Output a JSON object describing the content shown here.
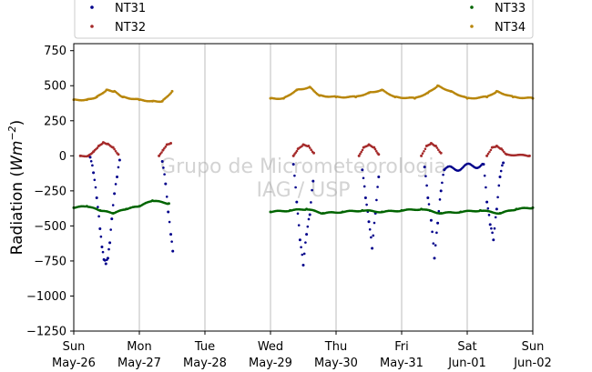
{
  "chart_data": {
    "type": "scatter",
    "title": "",
    "xlabel": "",
    "ylabel": "Radiation (Wm⁻²)",
    "ylabel_parts": {
      "prefix": "Radiation (",
      "unit": "Wm",
      "exp": "−2",
      "suffix": ")"
    },
    "ylim": [
      -1250,
      800
    ],
    "xlim": [
      0,
      7
    ],
    "yticks": [
      750,
      500,
      250,
      0,
      -250,
      -500,
      -750,
      -1000,
      -1250
    ],
    "ytick_labels": [
      "750",
      "500",
      "250",
      "0",
      "−250",
      "−500",
      "−750",
      "−1000",
      "−1250"
    ],
    "xticks": [
      {
        "x": 0,
        "day": "Sun",
        "date": "May-26"
      },
      {
        "x": 1,
        "day": "Mon",
        "date": "May-27"
      },
      {
        "x": 2,
        "day": "Tue",
        "date": "May-28"
      },
      {
        "x": 3,
        "day": "Wed",
        "date": "May-29"
      },
      {
        "x": 4,
        "day": "Thu",
        "date": "May-30"
      },
      {
        "x": 5,
        "day": "Fri",
        "date": "May-31"
      },
      {
        "x": 6,
        "day": "Sat",
        "date": "Jun-01"
      },
      {
        "x": 7,
        "day": "Sun",
        "date": "Jun-02"
      }
    ],
    "grid": "vertical",
    "legend_placement": "top",
    "watermark": [
      "Grupo de Micrometeorologia",
      "IAG / USP"
    ],
    "series": [
      {
        "name": "NT31",
        "color": "#00008b",
        "points": [
          [
            0.25,
            -10
          ],
          [
            0.3,
            -120
          ],
          [
            0.35,
            -300
          ],
          [
            0.4,
            -520
          ],
          [
            0.43,
            -650
          ],
          [
            0.46,
            -740
          ],
          [
            0.49,
            -770
          ],
          [
            0.52,
            -730
          ],
          [
            0.55,
            -620
          ],
          [
            0.58,
            -450
          ],
          [
            0.62,
            -270
          ],
          [
            0.66,
            -150
          ],
          [
            0.7,
            -30
          ],
          [
            1.35,
            -40
          ],
          [
            1.4,
            -200
          ],
          [
            1.44,
            -400
          ],
          [
            1.48,
            -560
          ],
          [
            1.51,
            -680
          ],
          [
            3.35,
            -60
          ],
          [
            3.4,
            -330
          ],
          [
            3.45,
            -600
          ],
          [
            3.5,
            -780
          ],
          [
            3.55,
            -560
          ],
          [
            3.6,
            -420
          ],
          [
            3.65,
            -180
          ],
          [
            4.4,
            -100
          ],
          [
            4.45,
            -300
          ],
          [
            4.5,
            -470
          ],
          [
            4.55,
            -660
          ],
          [
            4.6,
            -410
          ],
          [
            4.65,
            -150
          ],
          [
            5.35,
            -80
          ],
          [
            5.4,
            -300
          ],
          [
            5.45,
            -460
          ],
          [
            5.5,
            -730
          ],
          [
            5.55,
            -480
          ],
          [
            5.6,
            -250
          ],
          [
            5.65,
            -100
          ],
          [
            6.25,
            -60
          ],
          [
            6.3,
            -330
          ],
          [
            6.35,
            -490
          ],
          [
            6.4,
            -600
          ],
          [
            6.45,
            -380
          ],
          [
            6.5,
            -150
          ],
          [
            6.55,
            -50
          ]
        ]
      },
      {
        "name": "NT32",
        "color": "#a52a2a",
        "points": [
          [
            0.1,
            0
          ],
          [
            0.22,
            0
          ],
          [
            0.3,
            30
          ],
          [
            0.38,
            70
          ],
          [
            0.45,
            95
          ],
          [
            0.52,
            85
          ],
          [
            0.6,
            60
          ],
          [
            0.68,
            10
          ],
          [
            1.3,
            0
          ],
          [
            1.36,
            40
          ],
          [
            1.42,
            80
          ],
          [
            1.48,
            90
          ],
          [
            3.35,
            0
          ],
          [
            3.42,
            50
          ],
          [
            3.5,
            80
          ],
          [
            3.58,
            70
          ],
          [
            3.66,
            20
          ],
          [
            4.35,
            0
          ],
          [
            4.42,
            60
          ],
          [
            4.5,
            80
          ],
          [
            4.58,
            60
          ],
          [
            4.65,
            10
          ],
          [
            5.3,
            0
          ],
          [
            5.38,
            70
          ],
          [
            5.45,
            90
          ],
          [
            5.52,
            70
          ],
          [
            5.6,
            20
          ],
          [
            6.3,
            0
          ],
          [
            6.38,
            60
          ],
          [
            6.45,
            70
          ],
          [
            6.52,
            50
          ],
          [
            6.6,
            10
          ],
          [
            6.95,
            0
          ]
        ]
      },
      {
        "name": "NT33",
        "color": "#006400",
        "points": [
          [
            0,
            -370
          ],
          [
            0.2,
            -360
          ],
          [
            0.4,
            -390
          ],
          [
            0.6,
            -410
          ],
          [
            0.8,
            -380
          ],
          [
            1.0,
            -360
          ],
          [
            1.2,
            -320
          ],
          [
            1.45,
            -340
          ],
          [
            3.0,
            -400
          ],
          [
            3.3,
            -390
          ],
          [
            3.55,
            -380
          ],
          [
            3.8,
            -410
          ],
          [
            4.1,
            -400
          ],
          [
            4.4,
            -390
          ],
          [
            4.7,
            -400
          ],
          [
            5.0,
            -390
          ],
          [
            5.3,
            -380
          ],
          [
            5.6,
            -410
          ],
          [
            5.9,
            -400
          ],
          [
            6.2,
            -390
          ],
          [
            6.5,
            -410
          ],
          [
            6.75,
            -380
          ],
          [
            7.0,
            -370
          ]
        ]
      },
      {
        "name": "NT34",
        "color": "#b8860b",
        "points": [
          [
            0,
            400
          ],
          [
            0.2,
            400
          ],
          [
            0.35,
            420
          ],
          [
            0.5,
            470
          ],
          [
            0.62,
            460
          ],
          [
            0.75,
            420
          ],
          [
            1.0,
            400
          ],
          [
            1.2,
            390
          ],
          [
            1.35,
            390
          ],
          [
            1.5,
            460
          ],
          [
            3.0,
            410
          ],
          [
            3.2,
            410
          ],
          [
            3.4,
            470
          ],
          [
            3.6,
            490
          ],
          [
            3.75,
            430
          ],
          [
            4.0,
            420
          ],
          [
            4.3,
            420
          ],
          [
            4.5,
            450
          ],
          [
            4.7,
            470
          ],
          [
            4.9,
            420
          ],
          [
            5.2,
            410
          ],
          [
            5.4,
            450
          ],
          [
            5.55,
            500
          ],
          [
            5.75,
            460
          ],
          [
            6.0,
            410
          ],
          [
            6.3,
            420
          ],
          [
            6.45,
            460
          ],
          [
            6.7,
            420
          ],
          [
            7.0,
            410
          ]
        ]
      }
    ]
  }
}
